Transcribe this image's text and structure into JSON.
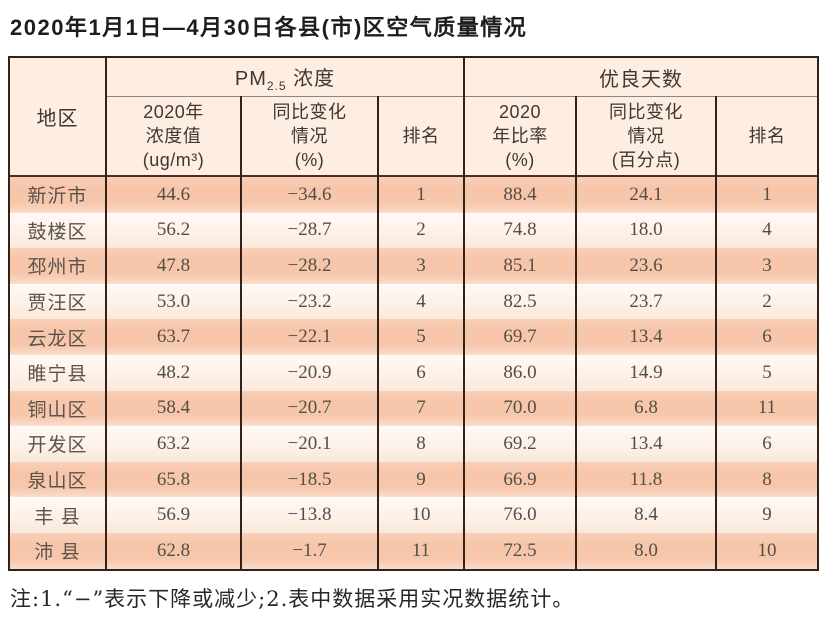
{
  "title": "2020年1月1日—4月30日各县(市)区空气质量情况",
  "table": {
    "header": {
      "region": "地区",
      "pm_group": {
        "prefix": "PM",
        "subscript": "2.5",
        "suffix": " 浓度"
      },
      "good_group": "优良天数",
      "pm_value": "2020年\n浓度值\n(ug/m³)",
      "pm_change": "同比变化\n情况\n(%)",
      "pm_rank": "排名",
      "good_rate": "2020\n年比率\n(%)",
      "good_change": "同比变化\n情况\n(百分点)",
      "good_rank": "排名"
    },
    "row_fields": [
      "region",
      "pm_value",
      "pm_change",
      "pm_rank",
      "good_rate",
      "good_change",
      "good_rank"
    ],
    "rows": [
      {
        "region": "新沂市",
        "pm_value": "44.6",
        "pm_change": "−34.6",
        "pm_rank": "1",
        "good_rate": "88.4",
        "good_change": "24.1",
        "good_rank": "1"
      },
      {
        "region": "鼓楼区",
        "pm_value": "56.2",
        "pm_change": "−28.7",
        "pm_rank": "2",
        "good_rate": "74.8",
        "good_change": "18.0",
        "good_rank": "4"
      },
      {
        "region": "邳州市",
        "pm_value": "47.8",
        "pm_change": "−28.2",
        "pm_rank": "3",
        "good_rate": "85.1",
        "good_change": "23.6",
        "good_rank": "3"
      },
      {
        "region": "贾汪区",
        "pm_value": "53.0",
        "pm_change": "−23.2",
        "pm_rank": "4",
        "good_rate": "82.5",
        "good_change": "23.7",
        "good_rank": "2"
      },
      {
        "region": "云龙区",
        "pm_value": "63.7",
        "pm_change": "−22.1",
        "pm_rank": "5",
        "good_rate": "69.7",
        "good_change": "13.4",
        "good_rank": "6"
      },
      {
        "region": "睢宁县",
        "pm_value": "48.2",
        "pm_change": "−20.9",
        "pm_rank": "6",
        "good_rate": "86.0",
        "good_change": "14.9",
        "good_rank": "5"
      },
      {
        "region": "铜山区",
        "pm_value": "58.4",
        "pm_change": "−20.7",
        "pm_rank": "7",
        "good_rate": "70.0",
        "good_change": "6.8",
        "good_rank": "11"
      },
      {
        "region": "开发区",
        "pm_value": "63.2",
        "pm_change": "−20.1",
        "pm_rank": "8",
        "good_rate": "69.2",
        "good_change": "13.4",
        "good_rank": "6"
      },
      {
        "region": "泉山区",
        "pm_value": "65.8",
        "pm_change": "−18.5",
        "pm_rank": "9",
        "good_rate": "66.9",
        "good_change": "11.8",
        "good_rank": "8"
      },
      {
        "region": "丰 县",
        "pm_value": "56.9",
        "pm_change": "−13.8",
        "pm_rank": "10",
        "good_rate": "76.0",
        "good_change": "8.4",
        "good_rank": "9"
      },
      {
        "region": "沛 县",
        "pm_value": "62.8",
        "pm_change": "−1.7",
        "pm_rank": "11",
        "good_rate": "72.5",
        "good_change": "8.0",
        "good_rank": "10"
      }
    ]
  },
  "note": "注:1.“−”表示下降或减少;2.表中数据采用实况数据统计。"
}
